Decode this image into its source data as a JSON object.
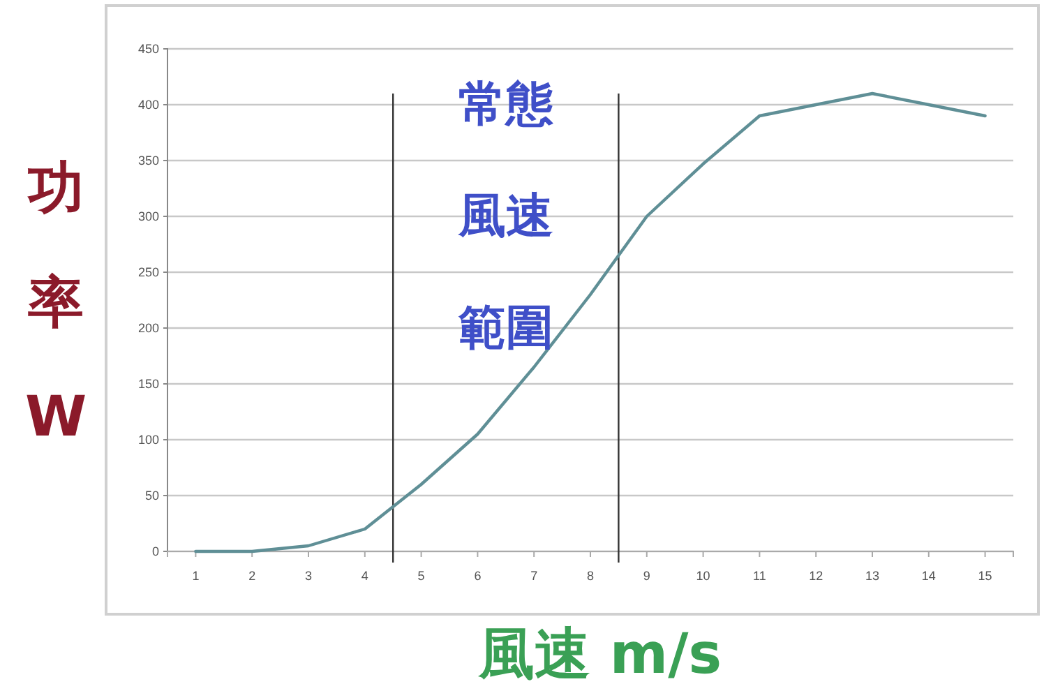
{
  "chart_data": {
    "type": "line",
    "xlabel": "風速 m/s",
    "ylabel": "功率W",
    "x": [
      1,
      2,
      3,
      4,
      5,
      6,
      7,
      8,
      9,
      10,
      11,
      12,
      13,
      14,
      15
    ],
    "series": [
      {
        "color": "#5f8f96",
        "values": [
          0,
          0,
          5,
          20,
          60,
          105,
          165,
          230,
          300,
          347,
          390,
          400,
          410,
          400,
          390
        ]
      }
    ],
    "xlim": [
      0.5,
      15.5
    ],
    "xticks": [
      1,
      2,
      3,
      4,
      5,
      6,
      7,
      8,
      9,
      10,
      11,
      12,
      13,
      14,
      15
    ],
    "ylim": [
      0,
      450
    ],
    "yticks": [
      0,
      50,
      100,
      150,
      200,
      250,
      300,
      350,
      400,
      450
    ],
    "grid": "y",
    "marker": "none",
    "line_style": "solid",
    "ref_lines": [
      {
        "axis": "x",
        "value": 4.5,
        "color": "#333333"
      },
      {
        "axis": "x",
        "value": 8.5,
        "color": "#333333"
      }
    ],
    "annotations": [
      "常態風速範圍"
    ]
  }
}
